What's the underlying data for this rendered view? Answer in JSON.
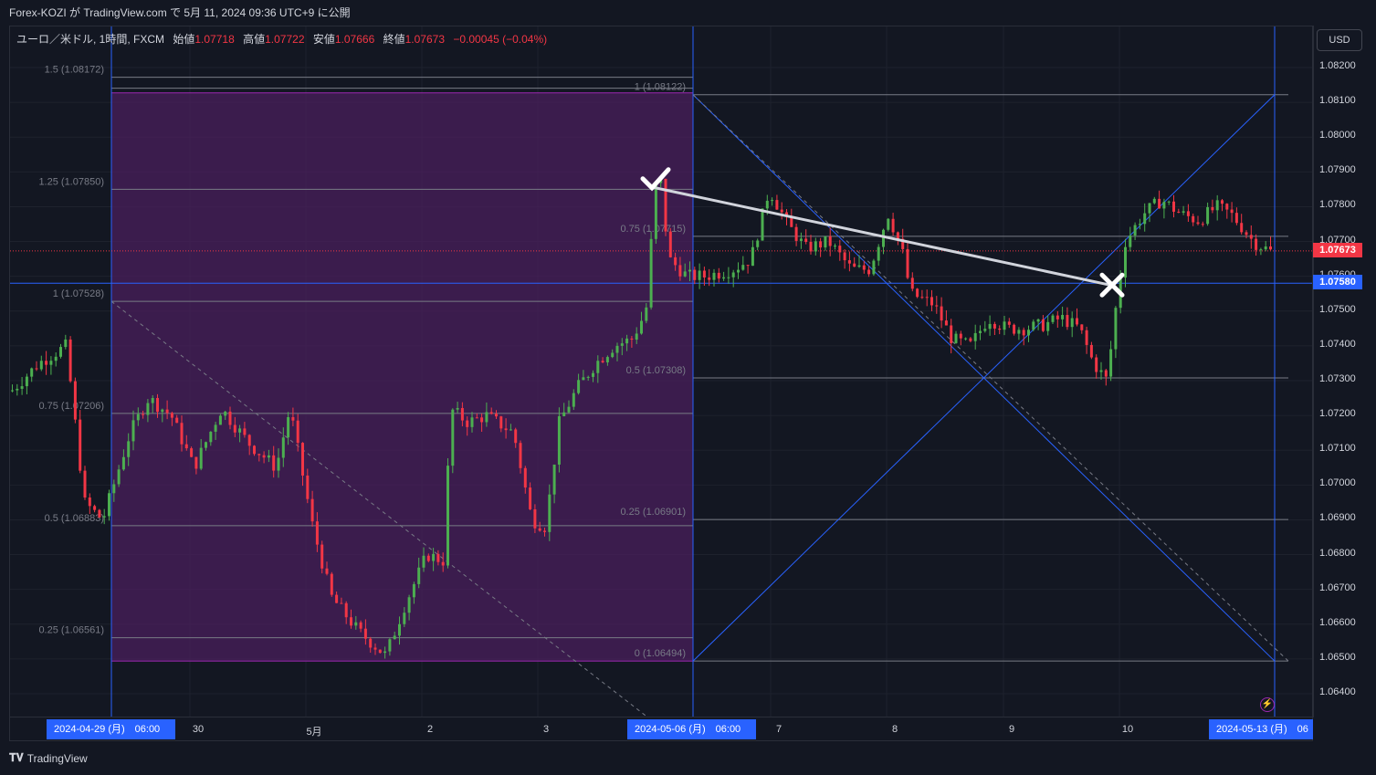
{
  "header": {
    "publish_text": "Forex-KOZI が TradingView.com で 5月 11, 2024 09:36 UTC+9 に公開"
  },
  "legend": {
    "symbol": "ユーロ／米ドル, 1時間, FXCM",
    "open_label": "始値",
    "open_value": "1.07718",
    "high_label": "高値",
    "high_value": "1.07722",
    "low_label": "安値",
    "low_value": "1.07666",
    "close_label": "終値",
    "close_value": "1.07673",
    "change": "−0.00045 (−0.04%)"
  },
  "price_axis": {
    "currency_button": "USD",
    "ticks": [
      "1.08200",
      "1.08100",
      "1.08000",
      "1.07900",
      "1.07800",
      "1.07700",
      "1.07600",
      "1.07500",
      "1.07400",
      "1.07300",
      "1.07200",
      "1.07100",
      "1.07000",
      "1.06900",
      "1.06800",
      "1.06700",
      "1.06600",
      "1.06500",
      "1.06400"
    ],
    "last_price_label": "1.07673",
    "crosshair_label": "1.07580"
  },
  "time_axis": {
    "ticks": [
      "30",
      "5月",
      "2",
      "3",
      "7",
      "8",
      "9",
      "10"
    ],
    "labels": [
      "2024-04-29 (月)　06:00",
      "2024-05-06 (月)　06:00",
      "2024-05-13 (月)　06"
    ]
  },
  "fib_left": {
    "levels": [
      {
        "label": "1.5 (1.08172)",
        "price": 1.08172
      },
      {
        "label": "1.25 (1.07850)",
        "price": 1.0785
      },
      {
        "label": "1 (1.07528)",
        "price": 1.07528
      },
      {
        "label": "0.75 (1.07206)",
        "price": 1.07206
      },
      {
        "label": "0.5 (1.06883)",
        "price": 1.06883
      },
      {
        "label": "0.25 (1.06561)",
        "price": 1.06561
      }
    ]
  },
  "fib_right": {
    "levels": [
      {
        "label": "1 (1.08122)",
        "price": 1.08122
      },
      {
        "label": "0.75 (1.07715)",
        "price": 1.07715
      },
      {
        "label": "0.5 (1.07308)",
        "price": 1.07308
      },
      {
        "label": "0.25 (1.06901)",
        "price": 1.06901
      },
      {
        "label": "0 (1.06494)",
        "price": 1.06494
      }
    ]
  },
  "colors": {
    "background": "#131722",
    "up": "#4caf50",
    "down": "#f23645",
    "blue_line": "#2962ff",
    "fib_fill": "#4a1f5c",
    "fib_border": "#9c27b0",
    "arrow_line": "#d1d4dc"
  },
  "chart_data": {
    "type": "candlestick",
    "symbol": "EUR/USD",
    "timeframe": "1h",
    "ylim": [
      1.0637,
      1.0825
    ],
    "last_price": 1.07673,
    "marked_price": 1.0758,
    "annotations": [
      {
        "type": "check",
        "price": 1.0787
      },
      {
        "type": "cross",
        "price": 1.0758
      }
    ]
  },
  "footer": {
    "brand": "TradingView"
  }
}
